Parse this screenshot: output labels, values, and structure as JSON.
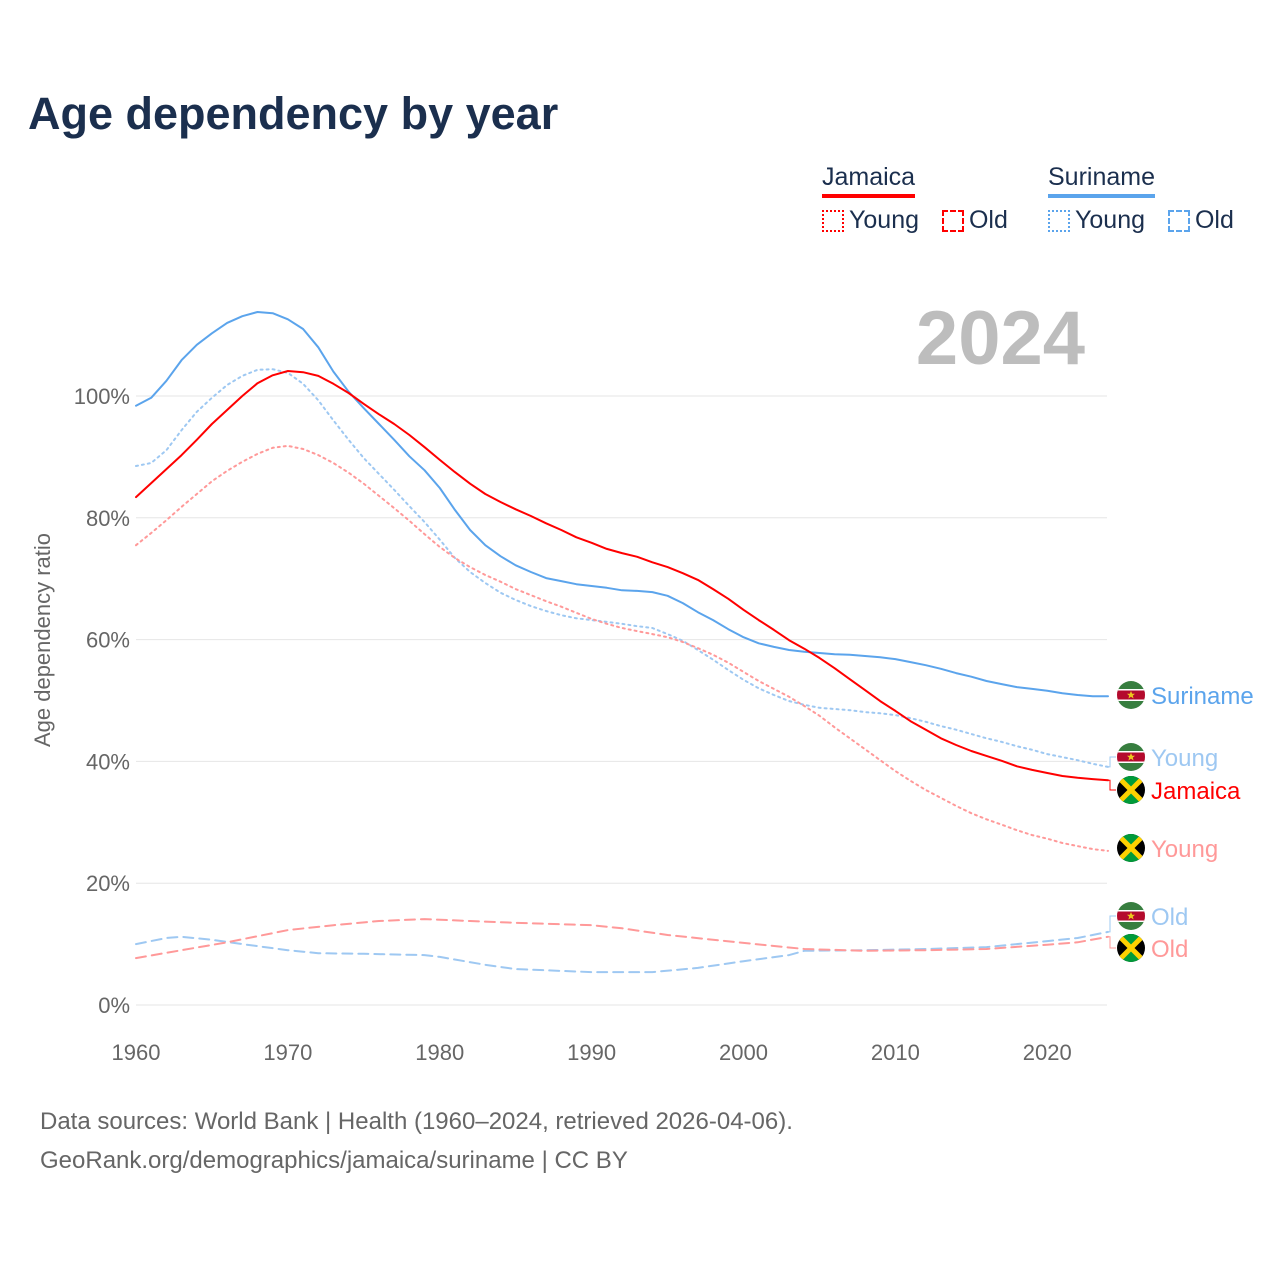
{
  "title": "Age dependency by year",
  "legend": {
    "groups": [
      {
        "name": "Jamaica",
        "color": "#ff0000",
        "items": [
          "Young",
          "Old"
        ]
      },
      {
        "name": "Suriname",
        "color": "#5ba4ec",
        "items": [
          "Young",
          "Old"
        ]
      }
    ]
  },
  "year_label": "2024",
  "footer": {
    "line1": "Data sources: World Bank | Health (1960–2024, retrieved 2026-04-06).",
    "line2": "GeoRank.org/demographics/jamaica/suriname | CC BY"
  },
  "chart_data": {
    "type": "line",
    "title": "Age dependency by year",
    "xlabel": "",
    "ylabel": "Age dependency ratio",
    "xlim": [
      1960,
      2024
    ],
    "ylim": [
      0,
      110
    ],
    "xticks": [
      1960,
      1970,
      1980,
      1990,
      2000,
      2010,
      2020
    ],
    "yticks": [
      0,
      20,
      40,
      60,
      80,
      100
    ],
    "ytick_labels": [
      "0%",
      "20%",
      "40%",
      "60%",
      "80%",
      "100%"
    ],
    "grid": true,
    "legend_position": "top-right",
    "series": [
      {
        "name": "Suriname",
        "label": "Suriname",
        "country": "Suriname",
        "kind": "total",
        "color": "#5ba4ec",
        "dash": "solid",
        "x_start": 1960,
        "values": [
          98.4,
          99.7,
          102.5,
          105.9,
          108.4,
          110.3,
          112,
          113.1,
          113.8,
          113.6,
          112.6,
          111,
          108,
          104,
          100.7,
          98,
          95.4,
          92.8,
          90.1,
          87.8,
          84.9,
          81.3,
          78,
          75.5,
          73.7,
          72.2,
          71.1,
          70.1,
          69.6,
          69.1,
          68.8,
          68.5,
          68.1,
          68,
          67.8,
          67.2,
          66,
          64.5,
          63.2,
          61.7,
          60.4,
          59.4,
          58.8,
          58.3,
          58,
          57.8,
          57.6,
          57.5,
          57.3,
          57.1,
          56.8,
          56.3,
          55.8,
          55.2,
          54.5,
          53.9,
          53.2,
          52.7,
          52.2,
          51.9,
          51.6,
          51.2,
          50.9,
          50.7,
          50.7
        ]
      },
      {
        "name": "Suriname Young",
        "label": "Young",
        "country": "Suriname",
        "kind": "young",
        "color": "#9ec8f2",
        "dash": "dotted",
        "x_start": 1960,
        "values": [
          88.5,
          89,
          91.1,
          94.4,
          97.4,
          99.7,
          101.8,
          103.3,
          104.3,
          104.4,
          103.8,
          102,
          99.3,
          96,
          92.8,
          89.8,
          87.2,
          84.6,
          81.9,
          79.3,
          76.4,
          73.4,
          71.1,
          69.3,
          67.7,
          66.5,
          65.5,
          64.7,
          64,
          63.5,
          63.2,
          62.9,
          62.6,
          62.2,
          61.9,
          60.9,
          59.8,
          58.3,
          56.7,
          55,
          53.4,
          52,
          50.9,
          49.9,
          49.3,
          48.8,
          48.6,
          48.4,
          48.1,
          47.9,
          47.6,
          47.1,
          46.5,
          45.8,
          45.2,
          44.5,
          43.8,
          43.2,
          42.5,
          41.9,
          41.2,
          40.7,
          40.2,
          39.6,
          39.1
        ]
      },
      {
        "name": "Jamaica",
        "label": "Jamaica",
        "country": "Jamaica",
        "kind": "total",
        "color": "#ff0000",
        "dash": "solid",
        "x_start": 1960,
        "values": [
          83.4,
          85.7,
          88,
          90.3,
          92.8,
          95.4,
          97.7,
          100,
          102.1,
          103.4,
          104.1,
          103.9,
          103.3,
          102,
          100.5,
          98.7,
          97,
          95.4,
          93.6,
          91.6,
          89.5,
          87.5,
          85.6,
          83.9,
          82.6,
          81.4,
          80.3,
          79.1,
          78,
          76.8,
          75.9,
          74.9,
          74.2,
          73.6,
          72.7,
          71.9,
          70.9,
          69.8,
          68.3,
          66.7,
          64.9,
          63.2,
          61.6,
          59.9,
          58.5,
          57,
          55.3,
          53.5,
          51.7,
          49.9,
          48.3,
          46.6,
          45.2,
          43.8,
          42.7,
          41.7,
          40.9,
          40.1,
          39.2,
          38.6,
          38.1,
          37.6,
          37.3,
          37.1,
          36.9
        ]
      },
      {
        "name": "Jamaica Young",
        "label": "Young",
        "country": "Jamaica",
        "kind": "young",
        "color": "#ff9999",
        "dash": "dotted",
        "x_start": 1960,
        "values": [
          75.5,
          77.5,
          79.6,
          81.8,
          83.9,
          86,
          87.7,
          89.2,
          90.5,
          91.5,
          91.8,
          91.3,
          90.3,
          89,
          87.4,
          85.6,
          83.6,
          81.6,
          79.5,
          77.3,
          75.2,
          73.4,
          71.9,
          70.6,
          69.5,
          68.3,
          67.3,
          66.3,
          65.4,
          64.4,
          63.4,
          62.6,
          61.9,
          61.4,
          60.9,
          60.4,
          59.6,
          58.6,
          57.5,
          56.2,
          54.7,
          53.2,
          51.9,
          50.6,
          49.1,
          47.5,
          45.6,
          43.8,
          42,
          40.2,
          38.4,
          36.8,
          35.3,
          34,
          32.7,
          31.5,
          30.5,
          29.6,
          28.7,
          27.9,
          27.3,
          26.6,
          26.1,
          25.6,
          25.3
        ]
      },
      {
        "name": "Suriname Old",
        "label": "Old",
        "country": "Suriname",
        "kind": "old",
        "color": "#9ec8f2",
        "dash": "dashed",
        "x": [
          1960,
          1962,
          1963,
          1965,
          1967,
          1970,
          1972,
          1975,
          1979,
          1980,
          1983,
          1985,
          1988,
          1990,
          1994,
          1997,
          2000,
          2003,
          2004,
          2008,
          2012,
          2016,
          2020,
          2022,
          2024
        ],
        "values": [
          10,
          11,
          11.2,
          10.7,
          10,
          9,
          8.5,
          8.4,
          8.2,
          7.9,
          6.6,
          5.9,
          5.6,
          5.4,
          5.4,
          6.1,
          7.2,
          8.2,
          8.9,
          9,
          9.2,
          9.5,
          10.5,
          11,
          12
        ]
      },
      {
        "name": "Jamaica Old",
        "label": "Old",
        "country": "Jamaica",
        "kind": "old",
        "color": "#ff9999",
        "dash": "dashed",
        "x": [
          1960,
          1963,
          1966,
          1970,
          1973,
          1976,
          1979,
          1982,
          1985,
          1990,
          1992,
          1995,
          2000,
          2004,
          2008,
          2012,
          2016,
          2020,
          2022,
          2024
        ],
        "values": [
          7.7,
          9,
          10.3,
          12.3,
          13.1,
          13.8,
          14.1,
          13.8,
          13.5,
          13.1,
          12.6,
          11.5,
          10.2,
          9.2,
          8.9,
          9,
          9.2,
          9.9,
          10.3,
          11.2
        ]
      }
    ]
  }
}
